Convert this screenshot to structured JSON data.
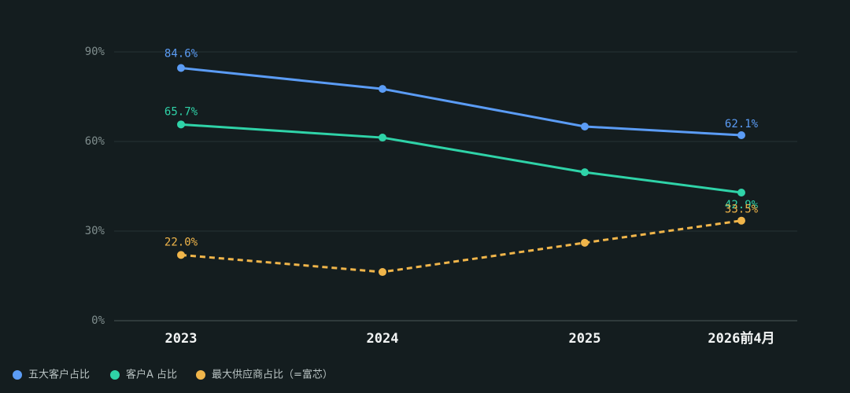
{
  "chart_data": {
    "type": "line",
    "categories": [
      "2023",
      "2024",
      "2025",
      "2026前4月"
    ],
    "series": [
      {
        "name": "五大客户占比",
        "color": "#5b9cf5",
        "dashed": false,
        "values": [
          84.6,
          77.6,
          65.0,
          62.1
        ],
        "value_labels": [
          "84.6%",
          null,
          null,
          "62.1%"
        ]
      },
      {
        "name": "客户A 占比",
        "color": "#2fd3a8",
        "dashed": false,
        "values": [
          65.7,
          61.3,
          49.7,
          42.9
        ],
        "value_labels": [
          "65.7%",
          null,
          null,
          "42.9%"
        ]
      },
      {
        "name": "最大供应商占比（=富芯）",
        "color": "#f0b54a",
        "dashed": true,
        "values": [
          22.0,
          16.3,
          26.1,
          33.5
        ],
        "value_labels": [
          "22.0%",
          null,
          null,
          "33.5%"
        ]
      }
    ],
    "ylim": [
      0,
      90
    ],
    "yticks": [
      {
        "value": 0,
        "label": "0%"
      },
      {
        "value": 30,
        "label": "30%"
      },
      {
        "value": 60,
        "label": "60%"
      },
      {
        "value": 90,
        "label": "90%"
      }
    ],
    "grid": true,
    "legend": "bottom-left"
  }
}
